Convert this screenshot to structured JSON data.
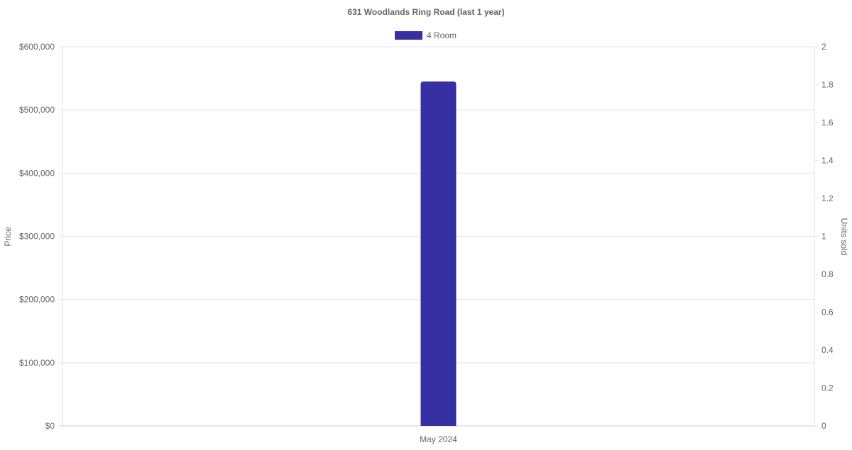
{
  "chart_data": {
    "type": "bar",
    "title": "631 Woodlands Ring Road (last 1 year)",
    "categories": [
      "May 2024"
    ],
    "series": [
      {
        "name": "4 Room",
        "values": [
          545000
        ],
        "color": "#3730a3"
      }
    ],
    "ylabel": "Price",
    "y2label": "Units sold",
    "ylim": [
      0,
      600000
    ],
    "y2lim": [
      0,
      2
    ],
    "yticks": [
      "$0",
      "$100,000",
      "$200,000",
      "$300,000",
      "$400,000",
      "$500,000",
      "$600,000"
    ],
    "y2ticks": [
      "0",
      "0.2",
      "0.4",
      "0.6",
      "0.8",
      "1",
      "1.2",
      "1.4",
      "1.6",
      "1.8",
      "2"
    ],
    "grid": true,
    "legend": "top"
  }
}
